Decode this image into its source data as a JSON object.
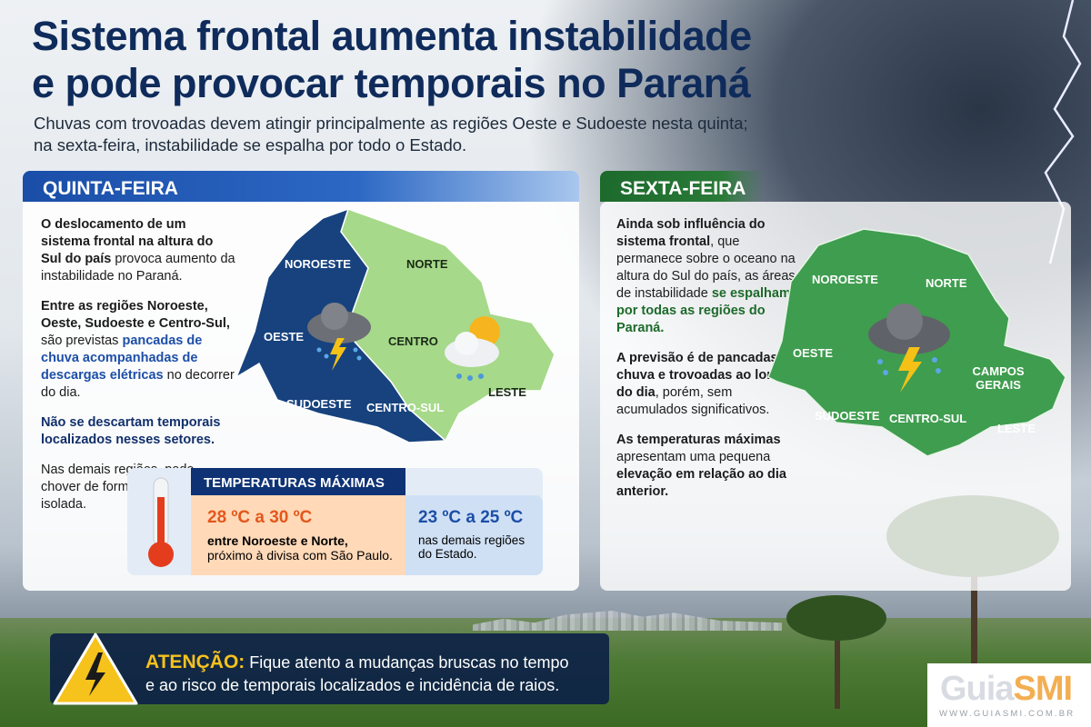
{
  "title": {
    "line1": "Sistema frontal aumenta instabilidade",
    "line2": "e pode provocar temporais no Paraná"
  },
  "subtitle": {
    "line1": "Chuvas com trovoadas devem atingir principalmente as regiões Oeste e Sudoeste nesta quinta;",
    "line2": "na sexta-feira, instabilidade se espalha por todo o Estado."
  },
  "colors": {
    "navy": "#0f2b5b",
    "quinta_header": "#1e56b0",
    "sexta_header": "#1f6a30",
    "map_blue": "#17427e",
    "map_light_green": "#a6d98a",
    "map_green": "#3f9d4f",
    "warm": "#ffd9b8"
  },
  "quinta": {
    "header": "QUINTA-FEIRA",
    "p1": [
      "O deslocamento de um sistema frontal na altura do Sul do país",
      " provoca aumento da instabilidade no Paraná."
    ],
    "p2": [
      "Entre as regiões Noroeste, Oeste, Sudoeste e Centro-Sul,",
      " são previstas ",
      "pancadas de chuva acompanhadas de descargas elétricas",
      " no decorrer do dia."
    ],
    "p3": "Não se descartam temporais localizados nesses setores.",
    "p4": "Nas demais regiões, pode chover de forma irregular e isolada.",
    "map": {
      "regions": [
        "NOROESTE",
        "NORTE",
        "OESTE",
        "CENTRO",
        "SUDOESTE",
        "CENTRO-SUL",
        "LESTE"
      ],
      "icons": [
        "storm-cloud-icon",
        "sun-cloud-rain-icon"
      ]
    }
  },
  "temperaturas": {
    "title": "TEMPERATURAS MÁXIMAS",
    "warm_range": "28 ºC a 30 ºC",
    "warm_bold": "entre Noroeste e Norte,",
    "warm_text": "próximo à divisa com São Paulo.",
    "cool_range": "23 ºC a 25 ºC",
    "cool_text": "nas demais regiões do Estado."
  },
  "sexta": {
    "header": "SEXTA-FEIRA",
    "p1": [
      "Ainda sob influência do sistema frontal",
      ", que permanece sobre o oceano na altura do Sul do país, as áreas de instabilidade ",
      "se espalham por todas as regiões do Paraná."
    ],
    "p2": [
      "A previsão é de pancadas de chuva e trovoadas ao longo do dia",
      ", porém, sem acumulados significativos."
    ],
    "p3": [
      "As temperaturas máximas",
      " apresentam uma pequena ",
      "elevação em relação ao dia anterior."
    ],
    "map": {
      "regions": [
        "NOROESTE",
        "NORTE",
        "OESTE",
        "CAMPOS GERAIS",
        "SUDOESTE",
        "CENTRO-SUL",
        "LESTE"
      ],
      "icons": [
        "storm-cloud-icon"
      ]
    }
  },
  "atencao": {
    "label": "ATENÇÃO:",
    "text1": "Fique atento a mudanças bruscas no tempo",
    "text2": "e ao risco de temporais localizados e incidência de raios."
  },
  "logo": {
    "name": "GuiaSMI",
    "url": "WWW.GUIASMI.COM.BR"
  }
}
